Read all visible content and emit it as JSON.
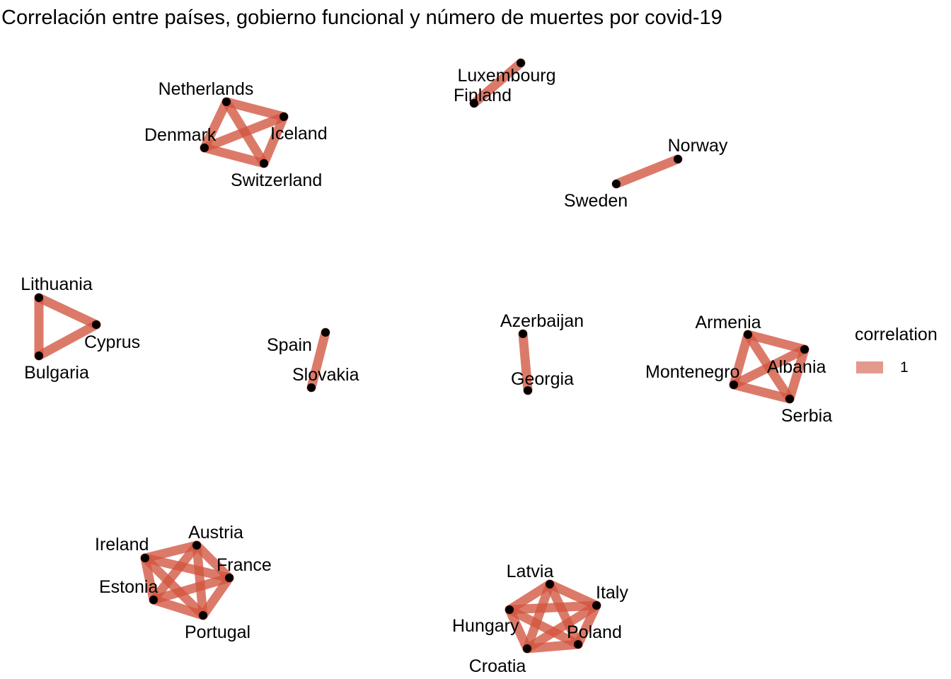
{
  "title": "Correlación entre países, gobierno funcional y número de muertes por covid-19",
  "colors": {
    "edge": "#d2543f",
    "edge_legend": "#e39a8e",
    "node": "#000000",
    "background": "#ffffff"
  },
  "legend": {
    "title": "correlation",
    "entries": [
      {
        "label": "1"
      }
    ]
  },
  "chart_data": {
    "type": "network",
    "edge_weight": 1,
    "clusters": [
      {
        "countries": [
          "Netherlands",
          "Iceland",
          "Switzerland",
          "Denmark"
        ],
        "connection": "complete"
      },
      {
        "countries": [
          "Luxembourg",
          "Finland"
        ],
        "connection": "complete"
      },
      {
        "countries": [
          "Norway",
          "Sweden"
        ],
        "connection": "complete"
      },
      {
        "countries": [
          "Lithuania",
          "Cyprus",
          "Bulgaria"
        ],
        "connection": "complete"
      },
      {
        "countries": [
          "Spain",
          "Slovakia"
        ],
        "connection": "complete"
      },
      {
        "countries": [
          "Azerbaijan",
          "Georgia"
        ],
        "connection": "complete"
      },
      {
        "countries": [
          "Armenia",
          "Albania",
          "Serbia",
          "Montenegro"
        ],
        "connection": "complete"
      },
      {
        "countries": [
          "Austria",
          "France",
          "Portugal",
          "Estonia",
          "Ireland"
        ],
        "connection": "complete"
      },
      {
        "countries": [
          "Latvia",
          "Italy",
          "Poland",
          "Croatia",
          "Hungary"
        ],
        "connection": "complete"
      }
    ]
  }
}
